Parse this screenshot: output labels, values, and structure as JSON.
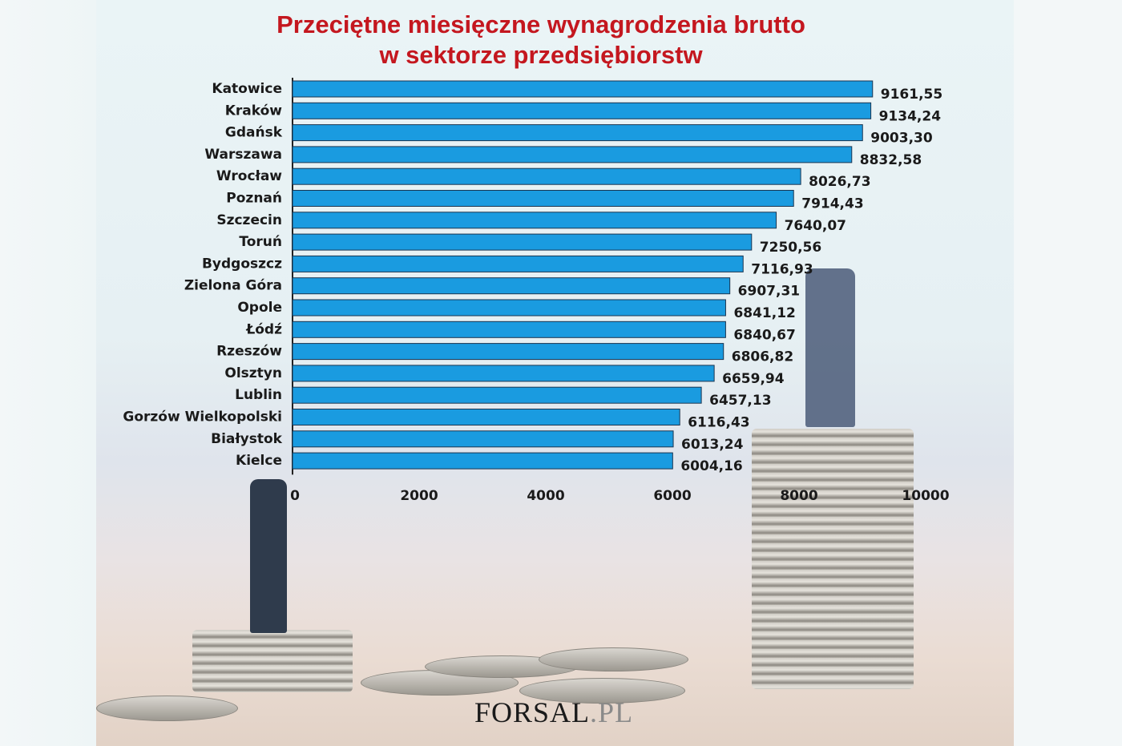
{
  "chart_data": {
    "type": "bar",
    "orientation": "horizontal",
    "title": "Przeciętne miesięczne wynagrodzenia brutto w sektorze przedsiębiorstw",
    "title_lines": [
      "Przeciętne miesięczne wynagrodzenia brutto",
      "w sektorze przedsiębiorstw"
    ],
    "categories": [
      "Katowice",
      "Kraków",
      "Gdańsk",
      "Warszawa",
      "Wrocław",
      "Poznań",
      "Szczecin",
      "Toruń",
      "Bydgoszcz",
      "Zielona Góra",
      "Opole",
      "Łódź",
      "Rzeszów",
      "Olsztyn",
      "Lublin",
      "Gorzów Wielkopolski",
      "Białystok",
      "Kielce"
    ],
    "values": [
      9161.55,
      9134.24,
      9003.3,
      8832.58,
      8026.73,
      7914.43,
      7640.07,
      7250.56,
      7116.93,
      6907.31,
      6841.12,
      6840.67,
      6806.82,
      6659.94,
      6457.13,
      6116.43,
      6013.24,
      6004.16
    ],
    "value_labels": [
      "9161,55",
      "9134,24",
      "9003,30",
      "8832,58",
      "8026,73",
      "7914,43",
      "7640,07",
      "7250,56",
      "7116,93",
      "6907,31",
      "6841,12",
      "6840,67",
      "6806,82",
      "6659,94",
      "6457,13",
      "6116,43",
      "6013,24",
      "6004,16"
    ],
    "xlim": [
      0,
      10000
    ],
    "xticks": [
      "0",
      "2000",
      "4000",
      "6000",
      "8000",
      "10000"
    ],
    "xlabel": "",
    "ylabel": "",
    "grid": false,
    "bar_color": "#1a9be0",
    "title_color": "#c4171f"
  },
  "logo": {
    "text": "FORSAL",
    "suffix": ".PL"
  }
}
